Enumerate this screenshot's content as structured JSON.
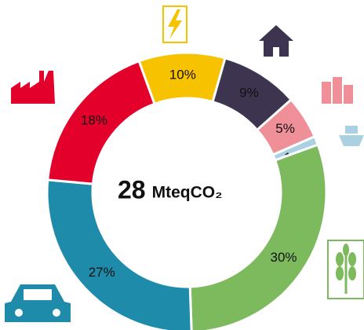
{
  "chart_data": {
    "type": "donut",
    "values": [
      10,
      9,
      5,
      1,
      30,
      27,
      18
    ],
    "value_labels": [
      "10%",
      "9%",
      "5%",
      "1%",
      "30%",
      "27%",
      "18%"
    ],
    "colors": [
      "#f7c200",
      "#3d3450",
      "#ef8f98",
      "#a9d1e1",
      "#7dba5e",
      "#1f8bab",
      "#e3002b"
    ],
    "center_value": "28",
    "center_unit": "MteqCO₂"
  }
}
